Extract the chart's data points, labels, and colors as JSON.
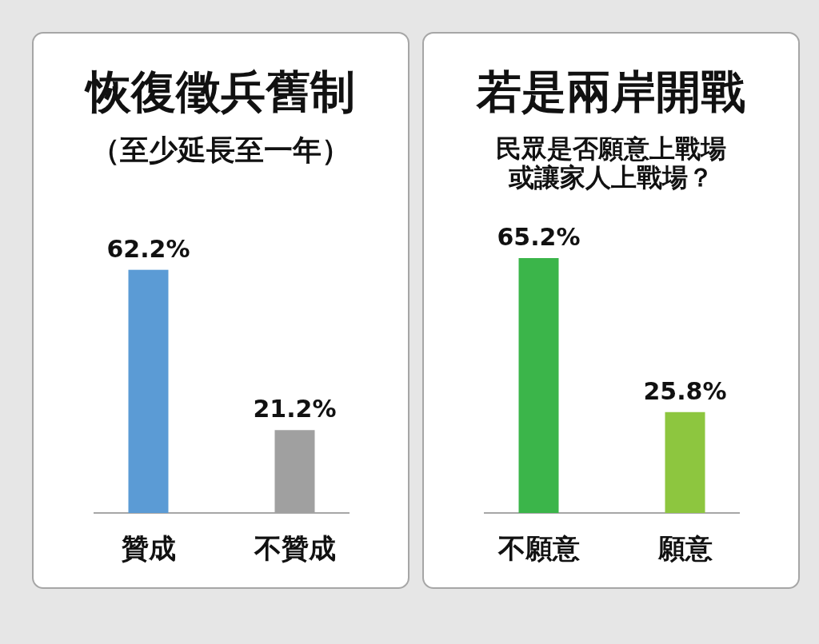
{
  "chart_data": [
    {
      "type": "bar",
      "title": "恢復徵兵舊制",
      "subtitle": "（至少延長至一年）",
      "categories": [
        "贊成",
        "不贊成"
      ],
      "values": [
        62.2,
        21.2
      ],
      "colors": [
        "#5b9bd5",
        "#a0a0a0"
      ],
      "value_labels": [
        "62.2%",
        "21.2%"
      ]
    },
    {
      "type": "bar",
      "title": "若是兩岸開戰",
      "subtitle": "民眾是否願意上戰場或讓家人上戰場？",
      "categories": [
        "不願意",
        "願意"
      ],
      "values": [
        65.2,
        25.8
      ],
      "colors": [
        "#3bb54a",
        "#8dc63f"
      ],
      "value_labels": [
        "65.2%",
        "25.8%"
      ]
    }
  ]
}
